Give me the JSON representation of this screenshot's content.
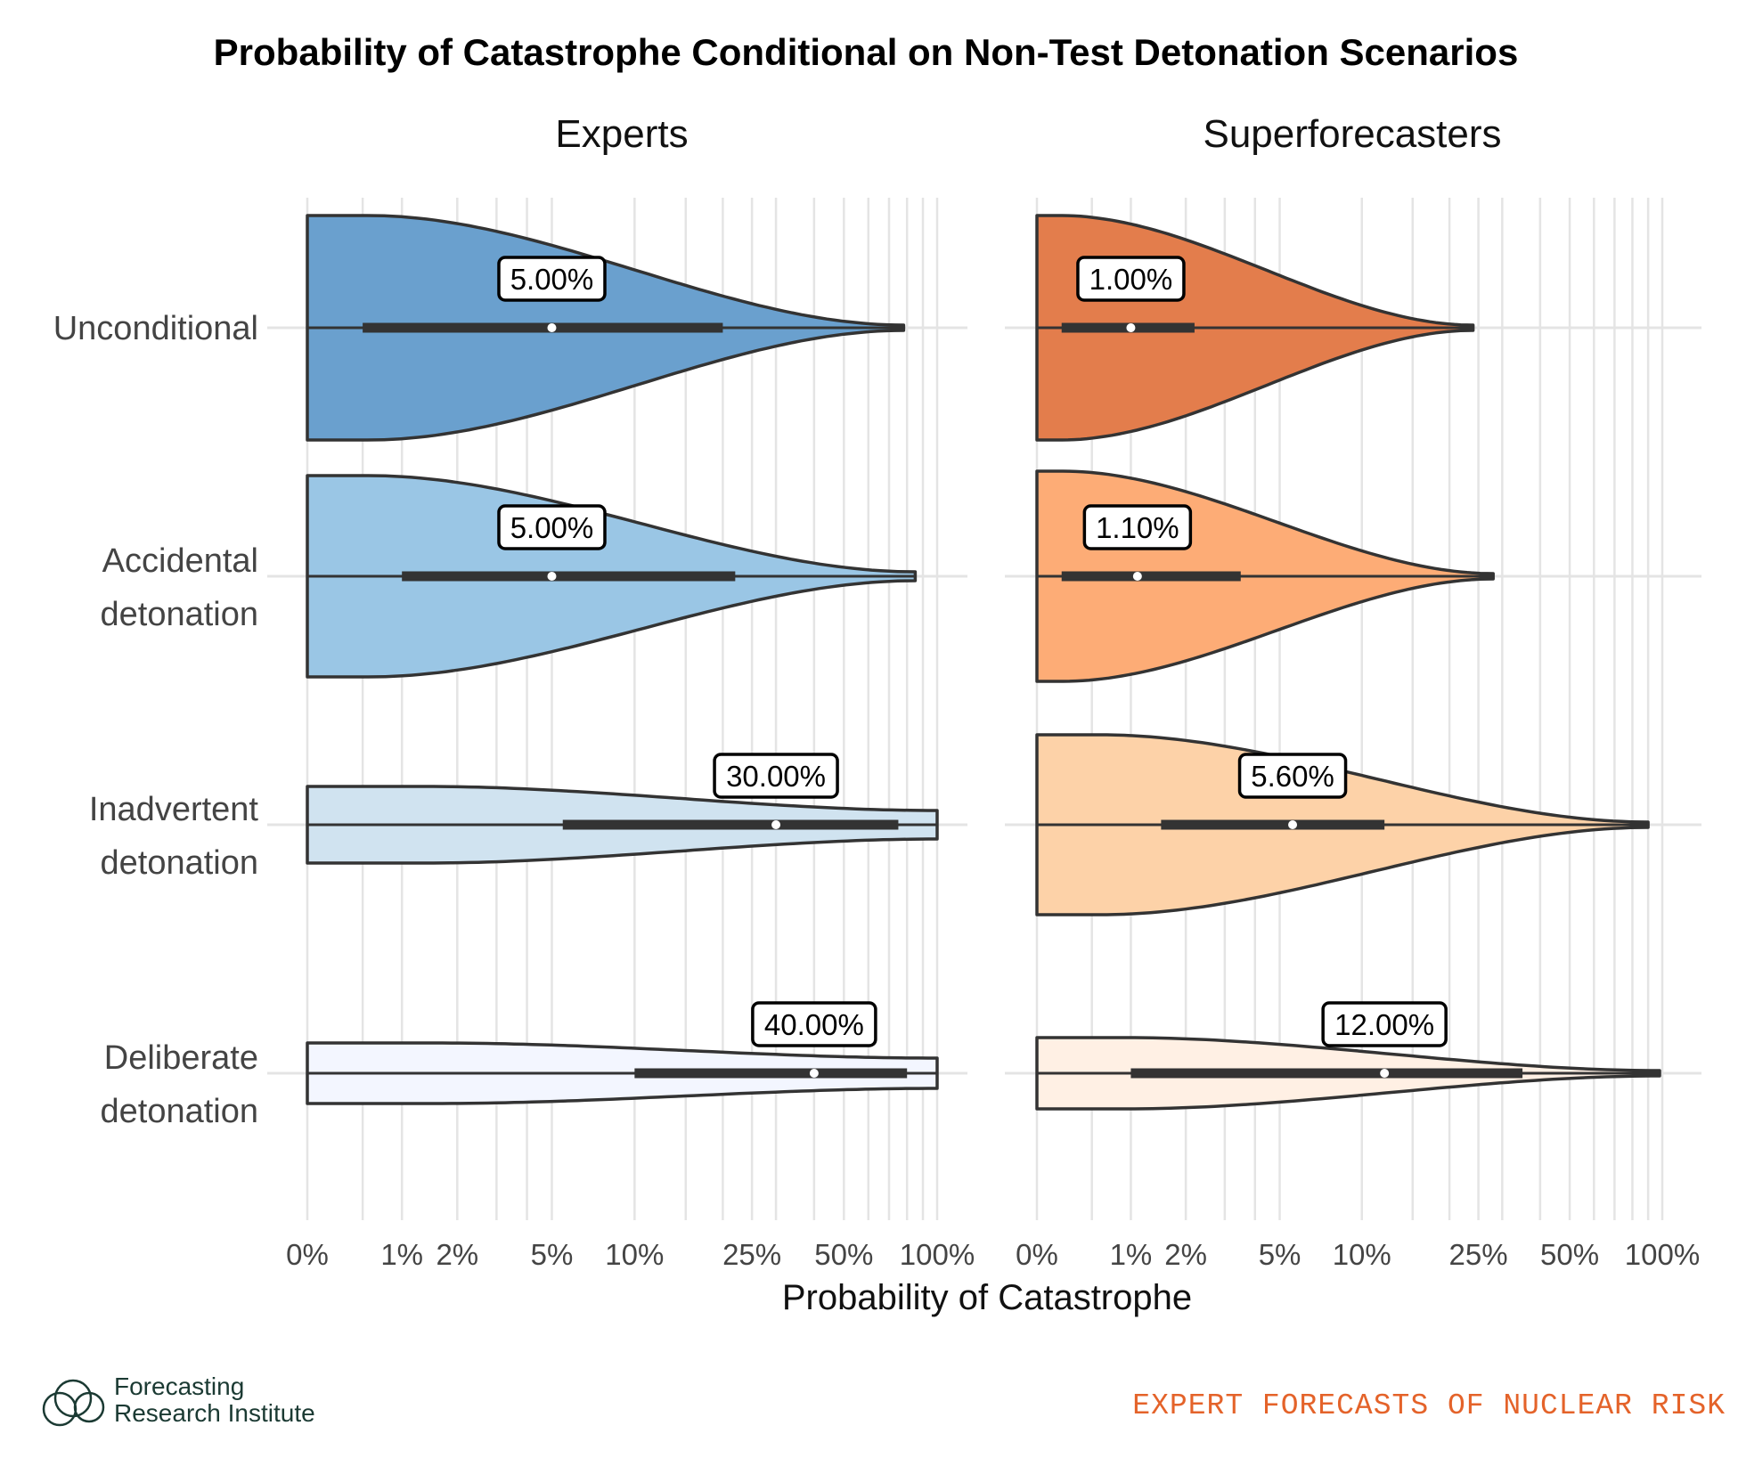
{
  "title": "Probability of Catastrophe Conditional on Non-Test Detonation Scenarios",
  "footer": {
    "brand_line1": "Forecasting",
    "brand_line2": "Research Institute",
    "tagline": "EXPERT FORECASTS OF NUCLEAR RISK"
  },
  "colors": {
    "experts": [
      "#6aa0ce",
      "#9ac6e5",
      "#d0e3f0",
      "#f3f6ff"
    ],
    "superforecasters": [
      "#e37d4c",
      "#fdac76",
      "#fdd2a8",
      "#fff0e4"
    ],
    "outline": "#333333",
    "grid": "#e4e4e4",
    "tagline": "#e4632a"
  },
  "chart_data": {
    "type": "violin",
    "title": "Probability of Catastrophe Conditional on Non-Test Detonation Scenarios",
    "xlabel": "Probability of Catastrophe",
    "x_scale": "pseudo-log",
    "x_ticks": [
      0,
      1,
      2,
      5,
      10,
      25,
      50,
      100
    ],
    "x_tick_labels": [
      "0%",
      "1%",
      "2%",
      "5%",
      "10%",
      "25%",
      "50%",
      "100%"
    ],
    "categories": [
      "Unconditional",
      "Accidental detonation",
      "Inadvertent detonation",
      "Deliberate detonation"
    ],
    "legend": "none",
    "panels": [
      {
        "name": "Experts",
        "series": [
          {
            "category": "Unconditional",
            "median": 5,
            "median_label": "5.00%",
            "q1": 0.5,
            "q3": 20,
            "min": 0,
            "max": 78
          },
          {
            "category": "Accidental detonation",
            "median": 5,
            "median_label": "5.00%",
            "q1": 1,
            "q3": 22,
            "min": 0,
            "max": 85
          },
          {
            "category": "Inadvertent detonation",
            "median": 30,
            "median_label": "30.00%",
            "q1": 5.5,
            "q3": 75,
            "min": 0,
            "max": 100
          },
          {
            "category": "Deliberate detonation",
            "median": 40,
            "median_label": "40.00%",
            "q1": 10,
            "q3": 80,
            "min": 0,
            "max": 100
          }
        ]
      },
      {
        "name": "Superforecasters",
        "series": [
          {
            "category": "Unconditional",
            "median": 1,
            "median_label": "1.00%",
            "q1": 0.2,
            "q3": 2.2,
            "min": 0,
            "max": 24
          },
          {
            "category": "Accidental detonation",
            "median": 1.1,
            "median_label": "1.10%",
            "q1": 0.2,
            "q3": 3.5,
            "min": 0,
            "max": 28
          },
          {
            "category": "Inadvertent detonation",
            "median": 5.6,
            "median_label": "5.60%",
            "q1": 1.5,
            "q3": 12,
            "min": 0,
            "max": 90
          },
          {
            "category": "Deliberate detonation",
            "median": 12,
            "median_label": "12.00%",
            "q1": 1,
            "q3": 35,
            "min": 0,
            "max": 98
          }
        ]
      }
    ]
  }
}
